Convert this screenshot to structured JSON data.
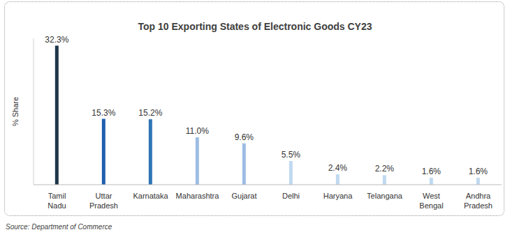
{
  "chart_data": {
    "type": "bar",
    "title": "Top 10 Exporting States of Electronic Goods CY23",
    "ylabel": "% Share",
    "annotations": [
      "Source: Department of Commerce"
    ],
    "categories": [
      "Tamil Nadu",
      "Uttar Pradesh",
      "Karnataka",
      "Maharashtra",
      "Gujarat",
      "Delhi",
      "Haryana",
      "Telangana",
      "West Bengal",
      "Andhra Pradesh"
    ],
    "values": [
      32.3,
      15.3,
      15.2,
      11.0,
      9.6,
      5.5,
      2.4,
      2.2,
      1.6,
      1.6
    ],
    "value_labels": [
      "32.3%",
      "15.3%",
      "15.2%",
      "11.0%",
      "9.6%",
      "5.5%",
      "2.4%",
      "2.2%",
      "1.6%",
      "1.6%"
    ],
    "colors": [
      "#1d3649",
      "#1f5fae",
      "#2e75b6",
      "#9dbde3",
      "#9dbde3",
      "#c0d9f0",
      "#c0d9f0",
      "#c0d9f0",
      "#c0d9f0",
      "#c0d9f0"
    ],
    "ylim": [
      0,
      34
    ],
    "grid": false,
    "data_labels": true,
    "tick_labels": "x"
  }
}
